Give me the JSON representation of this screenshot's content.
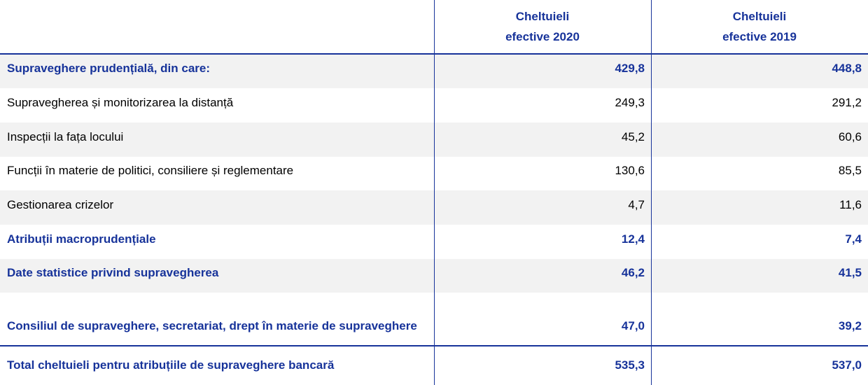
{
  "header": {
    "columns": [
      "Cheltuieli\nefective 2020",
      "Cheltuieli\nefective 2019"
    ]
  },
  "table": {
    "rows": [
      {
        "label": "Supraveghere prudențială, din care:",
        "values": [
          "429,8",
          "448,8"
        ],
        "bold": true
      },
      {
        "label": "Supravegherea și monitorizarea la distanță",
        "values": [
          "249,3",
          "291,2"
        ],
        "bold": false
      },
      {
        "label": "Inspecții la fața locului",
        "values": [
          "45,2",
          "60,6"
        ],
        "bold": false
      },
      {
        "label": "Funcții în materie de politici, consiliere și reglementare",
        "values": [
          "130,6",
          "85,5"
        ],
        "bold": false
      },
      {
        "label": "Gestionarea crizelor",
        "values": [
          "4,7",
          "11,6"
        ],
        "bold": false
      },
      {
        "label": "Atribuții macroprudențiale",
        "values": [
          "12,4",
          "7,4"
        ],
        "bold": true
      },
      {
        "label": "Date statistice privind supravegherea",
        "values": [
          "46,2",
          "41,5"
        ],
        "bold": true
      },
      {
        "label": "Consiliul de supraveghere, secretariat, drept în materie de supraveghere",
        "values": [
          "47,0",
          "39,2"
        ],
        "bold": true
      }
    ],
    "total": {
      "label": "Total cheltuieli pentru atribuțiile de supraveghere bancară",
      "values": [
        "535,3",
        "537,0"
      ],
      "bold": true
    }
  }
}
